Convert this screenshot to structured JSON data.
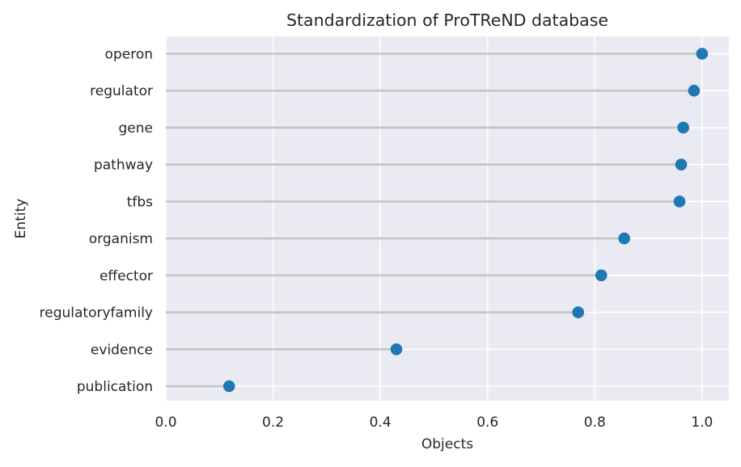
{
  "chart_data": {
    "type": "lollipop",
    "title": "Standardization of ProTReND database",
    "xlabel": "Objects",
    "ylabel": "Entity",
    "xlim": [
      0.0,
      1.05
    ],
    "xticks": [
      0.0,
      0.2,
      0.4,
      0.6,
      0.8,
      1.0
    ],
    "xtick_labels": [
      "0.0",
      "0.2",
      "0.4",
      "0.6",
      "0.8",
      "1.0"
    ],
    "categories": [
      "operon",
      "regulator",
      "gene",
      "pathway",
      "tfbs",
      "organism",
      "effector",
      "regulatoryfamily",
      "evidence",
      "publication"
    ],
    "values": [
      1.0,
      0.985,
      0.965,
      0.961,
      0.958,
      0.855,
      0.812,
      0.769,
      0.43,
      0.118
    ],
    "grid": true,
    "colors": {
      "background": "#eaeaf2",
      "grid": "#ffffff",
      "stem": "#c4c4c4",
      "marker": "#1f77b4"
    }
  }
}
